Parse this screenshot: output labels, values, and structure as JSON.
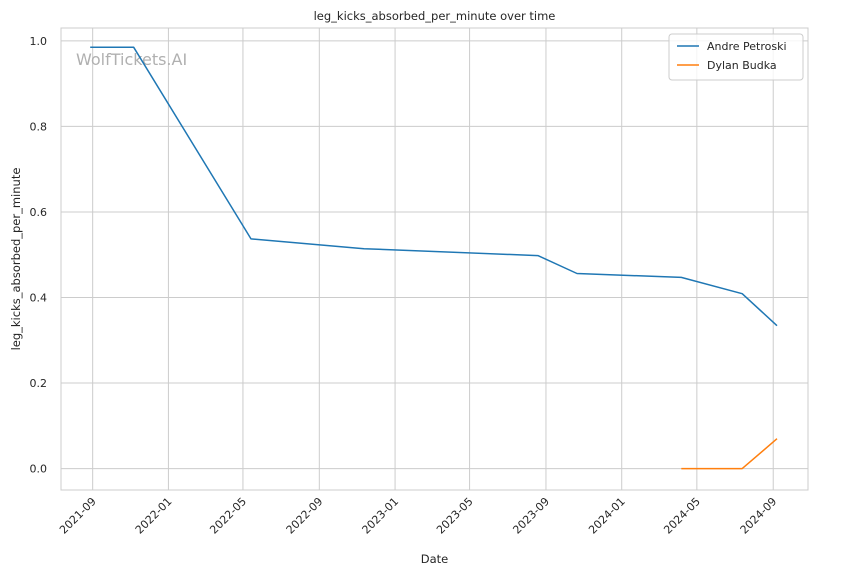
{
  "chart_data": {
    "type": "line",
    "title": "leg_kicks_absorbed_per_minute over time",
    "xlabel": "Date",
    "ylabel": "leg_kicks_absorbed_per_minute",
    "watermark": "WolfTickets.AI",
    "xlim": [
      "2021-07-12",
      "2024-10-27"
    ],
    "ylim": [
      -0.05,
      1.03
    ],
    "x_ticks": [
      "2021-09",
      "2022-01",
      "2022-05",
      "2022-09",
      "2023-01",
      "2023-05",
      "2023-09",
      "2024-01",
      "2024-05",
      "2024-09"
    ],
    "y_ticks": [
      "0.0",
      "0.2",
      "0.4",
      "0.6",
      "0.8",
      "1.0"
    ],
    "grid": true,
    "legend_position": "top-right",
    "series": [
      {
        "name": "Andre Petroski",
        "color": "#1f77b4",
        "points": [
          {
            "x": "2021-08-28",
            "y": 0.985
          },
          {
            "x": "2021-11-06",
            "y": 0.985
          },
          {
            "x": "2022-05-14",
            "y": 0.537
          },
          {
            "x": "2022-11-12",
            "y": 0.514
          },
          {
            "x": "2023-08-19",
            "y": 0.498
          },
          {
            "x": "2023-10-21",
            "y": 0.456
          },
          {
            "x": "2024-04-06",
            "y": 0.447
          },
          {
            "x": "2024-07-13",
            "y": 0.409
          },
          {
            "x": "2024-09-07",
            "y": 0.334
          }
        ]
      },
      {
        "name": "Dylan Budka",
        "color": "#ff7f0e",
        "points": [
          {
            "x": "2024-04-06",
            "y": 0.0
          },
          {
            "x": "2024-07-13",
            "y": 0.0
          },
          {
            "x": "2024-09-07",
            "y": 0.07
          }
        ]
      }
    ]
  }
}
